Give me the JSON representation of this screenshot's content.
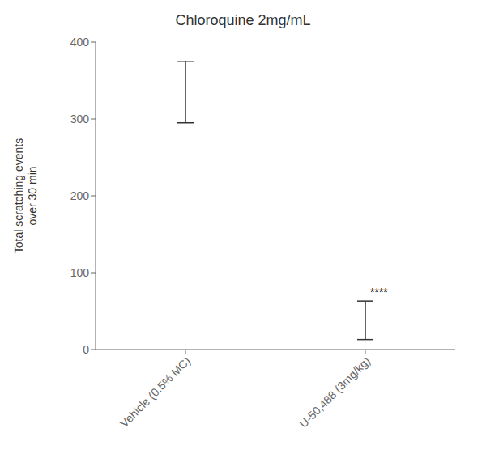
{
  "chart_data": {
    "type": "bar",
    "title": "Chloroquine 2mg/mL",
    "ylabel": "Total scratching events\nover 30 min",
    "categories": [
      "Vehicle (0.5% MC)",
      "U-50,488 (3mg/kg)"
    ],
    "values": [
      335,
      38
    ],
    "errors": [
      40,
      25
    ],
    "colors": [
      "#ffffff",
      "#6ecebb"
    ],
    "ylim": [
      0,
      400
    ],
    "yticks": [
      0,
      100,
      200,
      300,
      400
    ],
    "grid": false,
    "annotations": [
      {
        "text": "****",
        "category": "U-50,488 (3mg/kg)"
      }
    ]
  }
}
